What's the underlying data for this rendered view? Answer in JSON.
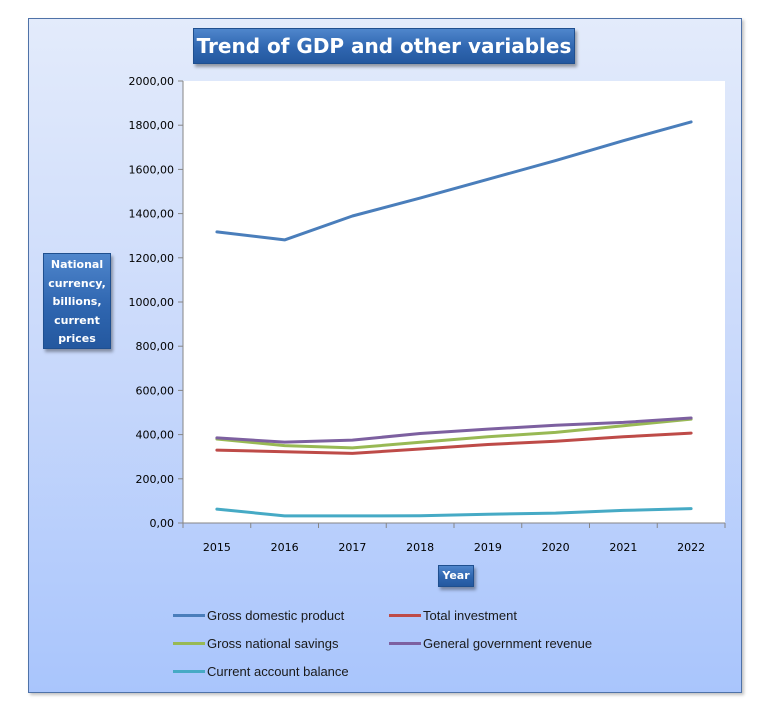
{
  "chart_data": {
    "type": "line",
    "title": "Trend of GDP and other variables",
    "xlabel": "Year",
    "ylabel": "National currency, billions, current prices",
    "ylabel_lines": [
      "National",
      "currency,",
      "billions,",
      "current",
      "prices"
    ],
    "x": [
      "2015",
      "2016",
      "2017",
      "2018",
      "2019",
      "2020",
      "2021",
      "2022"
    ],
    "ylim": [
      0,
      2000
    ],
    "yticks": [
      0,
      200,
      400,
      600,
      800,
      1000,
      1200,
      1400,
      1600,
      1800,
      2000
    ],
    "ytick_labels": [
      "0,00",
      "200,00",
      "400,00",
      "600,00",
      "800,00",
      "1000,00",
      "1200,00",
      "1400,00",
      "1600,00",
      "1800,00",
      "2000,00"
    ],
    "grid": false,
    "legend_position": "bottom",
    "series": [
      {
        "name": "Gross domestic product",
        "color": "#4a7ebb",
        "values": [
          1317,
          1281,
          1389,
          1470,
          1555,
          1640,
          1730,
          1815
        ]
      },
      {
        "name": "Total investment",
        "color": "#be4b48",
        "values": [
          330,
          322,
          315,
          335,
          355,
          370,
          390,
          407
        ]
      },
      {
        "name": "Gross national savings",
        "color": "#98b954",
        "values": [
          380,
          350,
          340,
          365,
          390,
          410,
          440,
          470
        ]
      },
      {
        "name": "General government revenue",
        "color": "#7d60a0",
        "values": [
          385,
          366,
          375,
          405,
          425,
          442,
          455,
          475
        ]
      },
      {
        "name": "Current account balance",
        "color": "#46aac5",
        "values": [
          63,
          32,
          32,
          33,
          40,
          45,
          57,
          65
        ]
      }
    ]
  }
}
